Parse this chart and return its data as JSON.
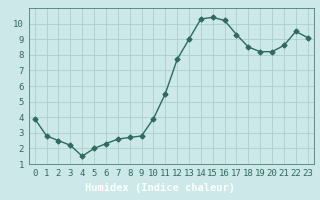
{
  "x": [
    0,
    1,
    2,
    3,
    4,
    5,
    6,
    7,
    8,
    9,
    10,
    11,
    12,
    13,
    14,
    15,
    16,
    17,
    18,
    19,
    20,
    21,
    22,
    23
  ],
  "y": [
    3.9,
    2.8,
    2.5,
    2.2,
    1.5,
    2.0,
    2.3,
    2.6,
    2.7,
    2.8,
    3.9,
    5.5,
    7.7,
    9.0,
    10.3,
    10.4,
    10.2,
    9.3,
    8.5,
    8.2,
    8.2,
    8.6,
    9.5,
    9.1
  ],
  "line_color": "#2e6b5e",
  "marker": "D",
  "marker_size": 2.5,
  "bg_color": "#cce8e8",
  "plot_bg_color": "#cce8e8",
  "xlabel_bg_color": "#4a7a72",
  "grid_color": "#aacfcf",
  "xlabel": "Humidex (Indice chaleur)",
  "xlim": [
    -0.5,
    23.5
  ],
  "ylim": [
    1,
    11
  ],
  "yticks": [
    1,
    2,
    3,
    4,
    5,
    6,
    7,
    8,
    9,
    10
  ],
  "xticks": [
    0,
    1,
    2,
    3,
    4,
    5,
    6,
    7,
    8,
    9,
    10,
    11,
    12,
    13,
    14,
    15,
    16,
    17,
    18,
    19,
    20,
    21,
    22,
    23
  ],
  "tick_label_fontsize": 6.5,
  "xlabel_fontsize": 7.5,
  "linewidth": 1.0
}
